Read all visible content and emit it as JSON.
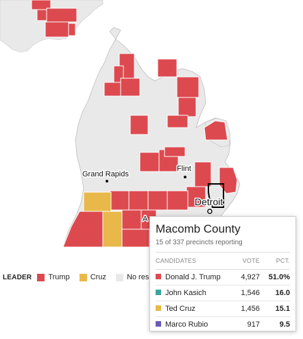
{
  "colors": {
    "trump": "#dc4a4f",
    "kasich": "#3aa5a0",
    "cruz": "#e8b84a",
    "rubio": "#6c5ab3",
    "no_results": "#e9e9e9",
    "background": "#ffffff",
    "county_border": "#ffffff"
  },
  "map": {
    "state": "Michigan",
    "cities": [
      {
        "name": "Grand Rapids"
      },
      {
        "name": "Flint"
      },
      {
        "name": "Detroit"
      },
      {
        "name": "Ann Arbor",
        "visible_text": "A"
      }
    ],
    "selected_county": "Macomb County"
  },
  "legend": {
    "title": "LEADER",
    "items": [
      {
        "label": "Trump",
        "color": "#dc4a4f"
      },
      {
        "label": "Cruz",
        "color": "#e8b84a"
      },
      {
        "label": "No res",
        "color": "#e9e9e9"
      }
    ]
  },
  "tooltip": {
    "county": "Macomb County",
    "reporting": "15 of 337 precincts reporting",
    "headers": {
      "candidates": "CANDIDATES",
      "vote": "VOTE",
      "pct": "PCT."
    },
    "rows": [
      {
        "name": "Donald J. Trump",
        "vote": "4,927",
        "pct": "51.0%",
        "color": "#dc4a4f"
      },
      {
        "name": "John Kasich",
        "vote": "1,546",
        "pct": "16.0",
        "color": "#3aa5a0"
      },
      {
        "name": "Ted Cruz",
        "vote": "1,456",
        "pct": "15.1",
        "color": "#e8b84a"
      },
      {
        "name": "Marco Rubio",
        "vote": "917",
        "pct": "9.5",
        "color": "#6c5ab3"
      }
    ]
  }
}
